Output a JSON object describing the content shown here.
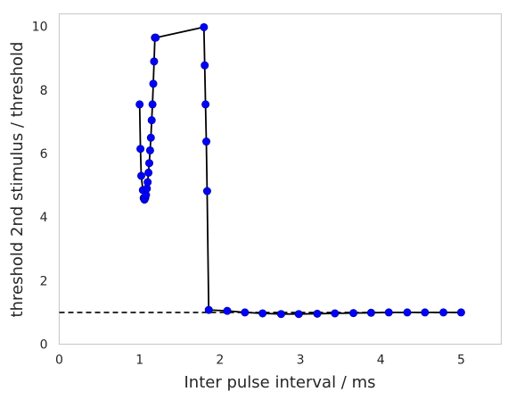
{
  "chart_data": {
    "type": "line",
    "title": "",
    "xlabel": "Inter pulse interval / ms",
    "ylabel": "threshold 2nd stimulus / threshold",
    "xlim": [
      0,
      5.5
    ],
    "ylim": [
      0,
      10.4
    ],
    "xticks": [
      0,
      1,
      2,
      3,
      4,
      5
    ],
    "yticks": [
      0,
      2,
      4,
      6,
      8,
      10
    ],
    "xtick_labels": [
      "0",
      "1",
      "2",
      "3",
      "4",
      "5"
    ],
    "ytick_labels": [
      "0",
      "2",
      "4",
      "6",
      "8",
      "10"
    ],
    "grid": false,
    "series": [
      {
        "style": "line-with-markers",
        "line_color": "#000000",
        "marker_color": "#0000ff",
        "x": [
          1.0,
          1.01,
          1.02,
          1.04,
          1.05,
          1.06,
          1.07,
          1.08,
          1.09,
          1.1,
          1.11,
          1.12,
          1.13,
          1.14,
          1.15,
          1.16,
          1.17,
          1.18,
          1.19,
          1.2,
          1.8,
          1.81,
          1.82,
          1.83,
          1.84,
          1.86,
          2.09,
          2.31,
          2.53,
          2.76,
          2.98,
          3.21,
          3.43,
          3.66,
          3.88,
          4.1,
          4.33,
          4.55,
          4.78,
          5.0
        ],
        "y": [
          7.55,
          6.15,
          5.3,
          4.85,
          4.6,
          4.55,
          4.6,
          4.7,
          4.9,
          5.1,
          5.4,
          5.7,
          6.1,
          6.5,
          7.05,
          7.55,
          8.2,
          8.9,
          9.65,
          9.65,
          9.98,
          8.78,
          7.55,
          6.38,
          4.82,
          1.08,
          1.05,
          1.0,
          0.97,
          0.95,
          0.95,
          0.96,
          0.97,
          0.98,
          0.99,
          1.0,
          1.0,
          1.0,
          1.0,
          1.0
        ]
      },
      {
        "style": "dashed",
        "line_color": "#000000",
        "x": [
          0,
          5.0
        ],
        "y": [
          1.0,
          1.0
        ]
      }
    ]
  }
}
